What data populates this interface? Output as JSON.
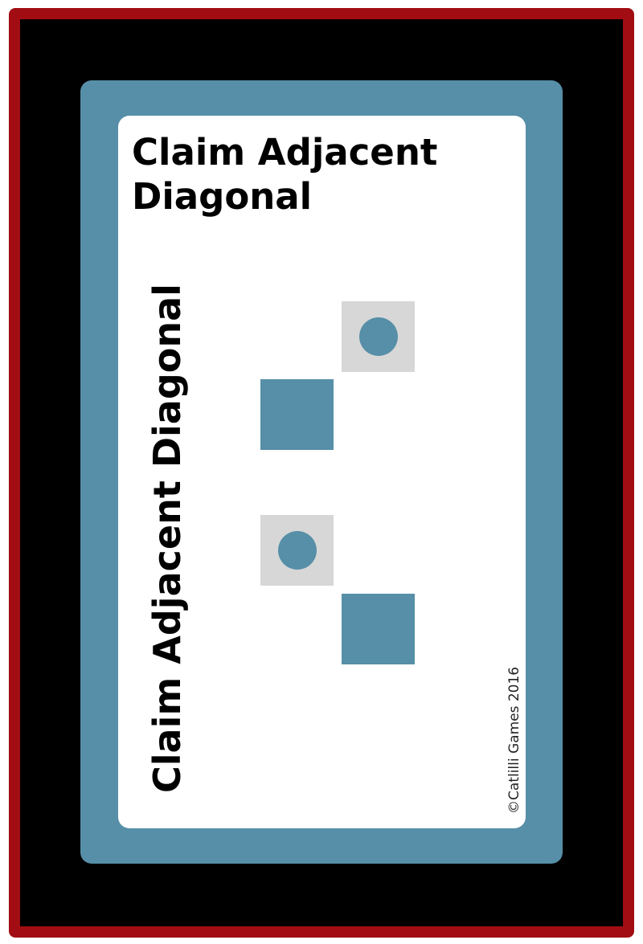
{
  "card": {
    "title": "Claim Adjacent Diagonal",
    "side_title": "Claim Adjacent Diagonal",
    "copyright": "©Catlilli Games 2016"
  },
  "colors": {
    "outer_border": "#a10d12",
    "background": "#000000",
    "card_accent": "#568fa7",
    "card_face": "#ffffff",
    "target_tile": "#d7d7d7"
  },
  "diagram": {
    "patterns": [
      {
        "tiles": [
          {
            "row": 0,
            "col": 1,
            "kind": "target-with-token"
          },
          {
            "row": 1,
            "col": 0,
            "kind": "claimed"
          }
        ]
      },
      {
        "tiles": [
          {
            "row": 0,
            "col": 0,
            "kind": "target-with-token"
          },
          {
            "row": 1,
            "col": 1,
            "kind": "claimed"
          }
        ]
      }
    ]
  }
}
